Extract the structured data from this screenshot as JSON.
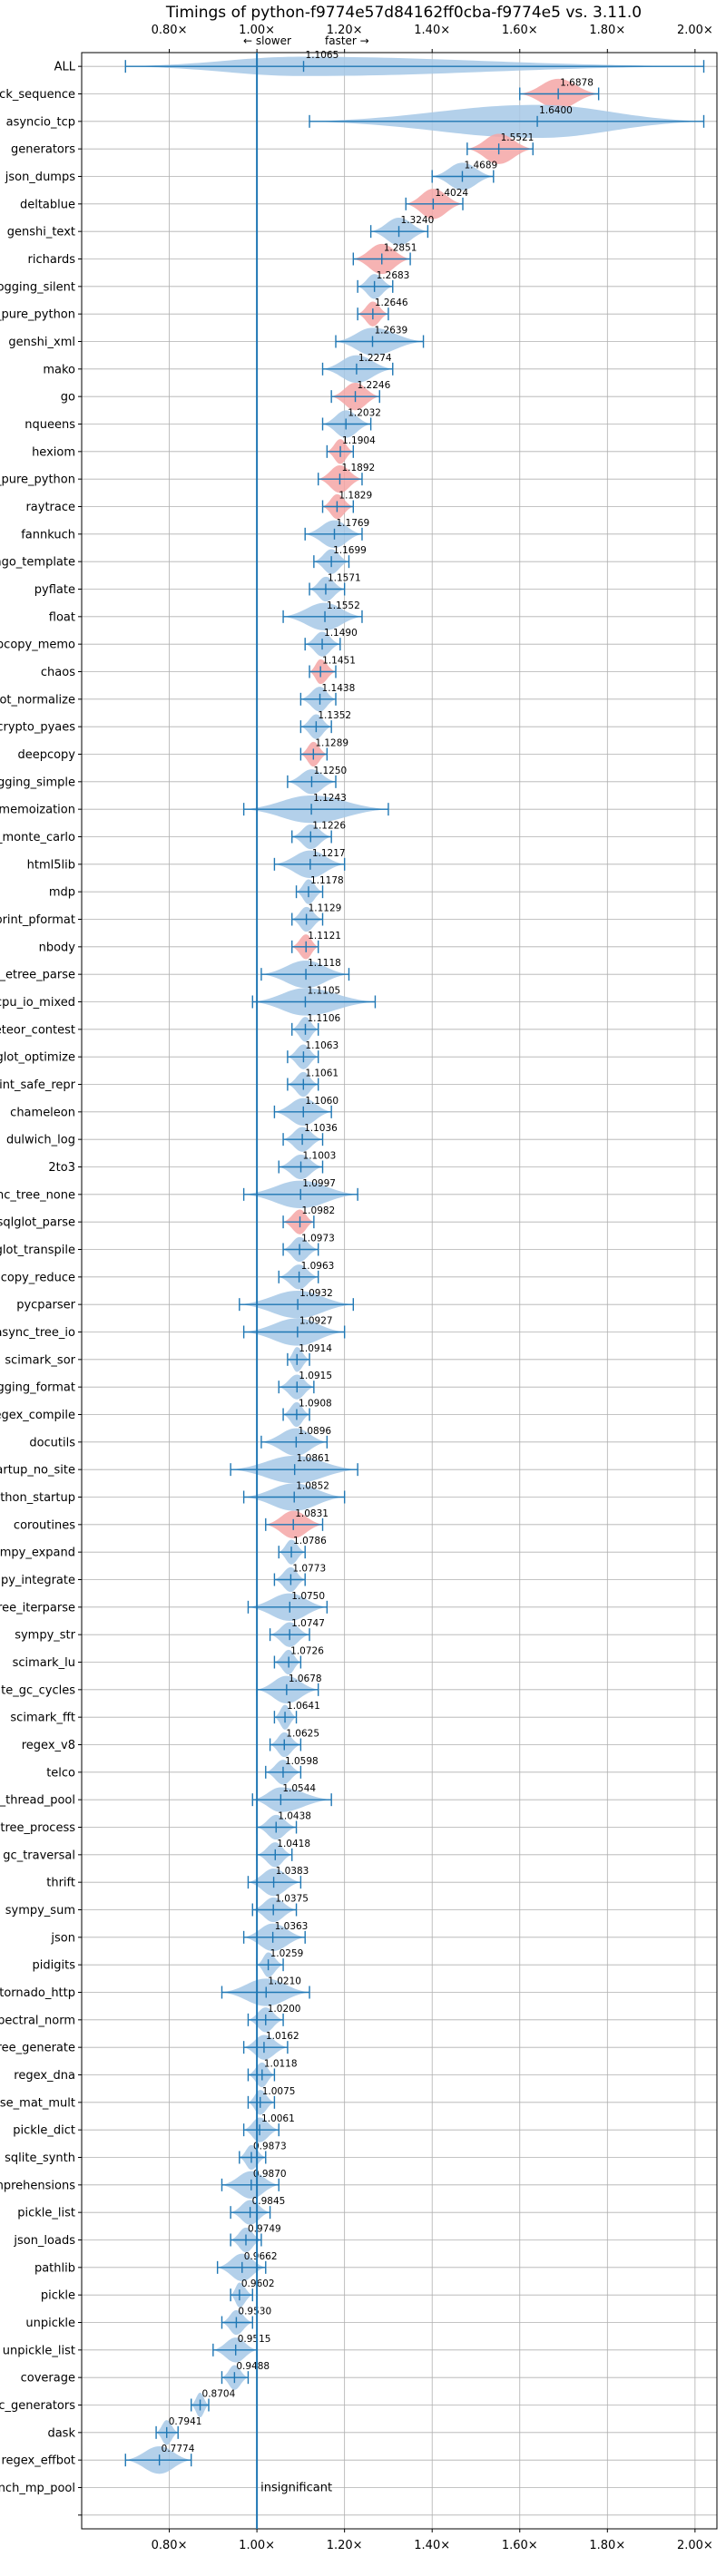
{
  "chart_data": {
    "type": "violin",
    "title": "Timings of python-f9774e57d84162ff0cba-f9774e5 vs. 3.11.0",
    "xlabel": "",
    "ylabel": "",
    "x_ticks": [
      "0.80×",
      "1.00×",
      "1.20×",
      "1.40×",
      "1.60×",
      "1.80×",
      "2.00×"
    ],
    "x_tick_values": [
      0.8,
      1.0,
      1.2,
      1.4,
      1.6,
      1.8,
      2.0
    ],
    "xlim": [
      0.6,
      2.05
    ],
    "reference_line": 1.0,
    "slower_label": "← slower",
    "faster_label": "faster →",
    "insignificant_label": "insignificant",
    "grid": true,
    "colors": {
      "normal": "#a6c8e6",
      "highlight": "#f4a6a6",
      "line": "#1f77b4",
      "grid": "#b0b0b0"
    },
    "benchmarks": [
      {
        "name": "ALL",
        "value": 1.1065,
        "value_label": "1.1065",
        "min": 0.7,
        "max": 2.02,
        "half_width": 0.35,
        "highlight": false
      },
      {
        "name": "unpack_sequence",
        "value": 1.6878,
        "value_label": "1.6878",
        "min": 1.6,
        "max": 1.78,
        "half_width": 0.55,
        "highlight": true
      },
      {
        "name": "asyncio_tcp",
        "value": 1.64,
        "value_label": "1.6400",
        "min": 1.12,
        "max": 2.02,
        "half_width": 0.6,
        "highlight": false
      },
      {
        "name": "generators",
        "value": 1.5521,
        "value_label": "1.5521",
        "min": 1.48,
        "max": 1.63,
        "half_width": 0.55,
        "highlight": true
      },
      {
        "name": "json_dumps",
        "value": 1.4689,
        "value_label": "1.4689",
        "min": 1.4,
        "max": 1.54,
        "half_width": 0.5,
        "highlight": false
      },
      {
        "name": "deltablue",
        "value": 1.4024,
        "value_label": "1.4024",
        "min": 1.34,
        "max": 1.47,
        "half_width": 0.55,
        "highlight": true
      },
      {
        "name": "genshi_text",
        "value": 1.324,
        "value_label": "1.3240",
        "min": 1.26,
        "max": 1.39,
        "half_width": 0.5,
        "highlight": false
      },
      {
        "name": "richards",
        "value": 1.2851,
        "value_label": "1.2851",
        "min": 1.22,
        "max": 1.35,
        "half_width": 0.55,
        "highlight": true
      },
      {
        "name": "logging_silent",
        "value": 1.2683,
        "value_label": "1.2683",
        "min": 1.23,
        "max": 1.31,
        "half_width": 0.45,
        "highlight": false
      },
      {
        "name": "unpickle_pure_python",
        "value": 1.2646,
        "value_label": "1.2646",
        "min": 1.23,
        "max": 1.3,
        "half_width": 0.45,
        "highlight": true
      },
      {
        "name": "genshi_xml",
        "value": 1.2639,
        "value_label": "1.2639",
        "min": 1.18,
        "max": 1.38,
        "half_width": 0.5,
        "highlight": false
      },
      {
        "name": "mako",
        "value": 1.2274,
        "value_label": "1.2274",
        "min": 1.15,
        "max": 1.31,
        "half_width": 0.5,
        "highlight": false
      },
      {
        "name": "go",
        "value": 1.2246,
        "value_label": "1.2246",
        "min": 1.17,
        "max": 1.28,
        "half_width": 0.5,
        "highlight": true
      },
      {
        "name": "nqueens",
        "value": 1.2032,
        "value_label": "1.2032",
        "min": 1.15,
        "max": 1.26,
        "half_width": 0.5,
        "highlight": false
      },
      {
        "name": "hexiom",
        "value": 1.1904,
        "value_label": "1.1904",
        "min": 1.16,
        "max": 1.22,
        "half_width": 0.45,
        "highlight": true
      },
      {
        "name": "pickle_pure_python",
        "value": 1.1892,
        "value_label": "1.1892",
        "min": 1.14,
        "max": 1.24,
        "half_width": 0.5,
        "highlight": true
      },
      {
        "name": "raytrace",
        "value": 1.1829,
        "value_label": "1.1829",
        "min": 1.15,
        "max": 1.22,
        "half_width": 0.45,
        "highlight": true
      },
      {
        "name": "fannkuch",
        "value": 1.1769,
        "value_label": "1.1769",
        "min": 1.11,
        "max": 1.24,
        "half_width": 0.5,
        "highlight": false
      },
      {
        "name": "django_template",
        "value": 1.1699,
        "value_label": "1.1699",
        "min": 1.13,
        "max": 1.21,
        "half_width": 0.45,
        "highlight": false
      },
      {
        "name": "pyflate",
        "value": 1.1571,
        "value_label": "1.1571",
        "min": 1.12,
        "max": 1.2,
        "half_width": 0.45,
        "highlight": false
      },
      {
        "name": "float",
        "value": 1.1552,
        "value_label": "1.1552",
        "min": 1.06,
        "max": 1.24,
        "half_width": 0.5,
        "highlight": false
      },
      {
        "name": "deepcopy_memo",
        "value": 1.149,
        "value_label": "1.1490",
        "min": 1.11,
        "max": 1.19,
        "half_width": 0.45,
        "highlight": false
      },
      {
        "name": "chaos",
        "value": 1.1451,
        "value_label": "1.1451",
        "min": 1.12,
        "max": 1.18,
        "half_width": 0.45,
        "highlight": true
      },
      {
        "name": "sqlglot_normalize",
        "value": 1.1438,
        "value_label": "1.1438",
        "min": 1.1,
        "max": 1.18,
        "half_width": 0.45,
        "highlight": false
      },
      {
        "name": "crypto_pyaes",
        "value": 1.1352,
        "value_label": "1.1352",
        "min": 1.1,
        "max": 1.17,
        "half_width": 0.45,
        "highlight": false
      },
      {
        "name": "deepcopy",
        "value": 1.1289,
        "value_label": "1.1289",
        "min": 1.1,
        "max": 1.16,
        "half_width": 0.45,
        "highlight": true
      },
      {
        "name": "logging_simple",
        "value": 1.125,
        "value_label": "1.1250",
        "min": 1.07,
        "max": 1.18,
        "half_width": 0.45,
        "highlight": false
      },
      {
        "name": "async_tree_memoization",
        "value": 1.1243,
        "value_label": "1.1243",
        "min": 0.97,
        "max": 1.3,
        "half_width": 0.5,
        "highlight": false
      },
      {
        "name": "scimark_monte_carlo",
        "value": 1.1226,
        "value_label": "1.1226",
        "min": 1.08,
        "max": 1.17,
        "half_width": 0.45,
        "highlight": false
      },
      {
        "name": "html5lib",
        "value": 1.1217,
        "value_label": "1.1217",
        "min": 1.04,
        "max": 1.2,
        "half_width": 0.5,
        "highlight": false
      },
      {
        "name": "mdp",
        "value": 1.1178,
        "value_label": "1.1178",
        "min": 1.09,
        "max": 1.15,
        "half_width": 0.45,
        "highlight": false
      },
      {
        "name": "pprint_pformat",
        "value": 1.1129,
        "value_label": "1.1129",
        "min": 1.08,
        "max": 1.15,
        "half_width": 0.45,
        "highlight": false
      },
      {
        "name": "nbody",
        "value": 1.1121,
        "value_label": "1.1121",
        "min": 1.08,
        "max": 1.14,
        "half_width": 0.45,
        "highlight": true
      },
      {
        "name": "xml_etree_parse",
        "value": 1.1118,
        "value_label": "1.1118",
        "min": 1.01,
        "max": 1.21,
        "half_width": 0.5,
        "highlight": false
      },
      {
        "name": "async_tree_cpu_io_mixed",
        "value": 1.1105,
        "value_label": "1.1105",
        "min": 0.99,
        "max": 1.27,
        "half_width": 0.5,
        "highlight": false
      },
      {
        "name": "meteor_contest",
        "value": 1.1106,
        "value_label": "1.1106",
        "min": 1.08,
        "max": 1.14,
        "half_width": 0.45,
        "highlight": false
      },
      {
        "name": "sqlglot_optimize",
        "value": 1.1063,
        "value_label": "1.1063",
        "min": 1.07,
        "max": 1.14,
        "half_width": 0.45,
        "highlight": false
      },
      {
        "name": "pprint_safe_repr",
        "value": 1.1061,
        "value_label": "1.1061",
        "min": 1.07,
        "max": 1.14,
        "half_width": 0.45,
        "highlight": false
      },
      {
        "name": "chameleon",
        "value": 1.106,
        "value_label": "1.1060",
        "min": 1.04,
        "max": 1.17,
        "half_width": 0.5,
        "highlight": false
      },
      {
        "name": "dulwich_log",
        "value": 1.1036,
        "value_label": "1.1036",
        "min": 1.06,
        "max": 1.15,
        "half_width": 0.45,
        "highlight": false
      },
      {
        "name": "2to3",
        "value": 1.1003,
        "value_label": "1.1003",
        "min": 1.05,
        "max": 1.15,
        "half_width": 0.45,
        "highlight": false
      },
      {
        "name": "async_tree_none",
        "value": 1.0997,
        "value_label": "1.0997",
        "min": 0.97,
        "max": 1.23,
        "half_width": 0.5,
        "highlight": false
      },
      {
        "name": "sqlglot_parse",
        "value": 1.0982,
        "value_label": "1.0982",
        "min": 1.06,
        "max": 1.13,
        "half_width": 0.45,
        "highlight": true
      },
      {
        "name": "sqlglot_transpile",
        "value": 1.0973,
        "value_label": "1.0973",
        "min": 1.06,
        "max": 1.14,
        "half_width": 0.45,
        "highlight": false
      },
      {
        "name": "deepcopy_reduce",
        "value": 1.0963,
        "value_label": "1.0963",
        "min": 1.05,
        "max": 1.14,
        "half_width": 0.45,
        "highlight": false
      },
      {
        "name": "pycparser",
        "value": 1.0932,
        "value_label": "1.0932",
        "min": 0.96,
        "max": 1.22,
        "half_width": 0.5,
        "highlight": false
      },
      {
        "name": "async_tree_io",
        "value": 1.0927,
        "value_label": "1.0927",
        "min": 0.97,
        "max": 1.2,
        "half_width": 0.5,
        "highlight": false
      },
      {
        "name": "scimark_sor",
        "value": 1.0914,
        "value_label": "1.0914",
        "min": 1.07,
        "max": 1.12,
        "half_width": 0.45,
        "highlight": false
      },
      {
        "name": "logging_format",
        "value": 1.0915,
        "value_label": "1.0915",
        "min": 1.05,
        "max": 1.13,
        "half_width": 0.45,
        "highlight": false
      },
      {
        "name": "regex_compile",
        "value": 1.0908,
        "value_label": "1.0908",
        "min": 1.06,
        "max": 1.12,
        "half_width": 0.45,
        "highlight": false
      },
      {
        "name": "docutils",
        "value": 1.0896,
        "value_label": "1.0896",
        "min": 1.01,
        "max": 1.16,
        "half_width": 0.5,
        "highlight": false
      },
      {
        "name": "python_startup_no_site",
        "value": 1.0861,
        "value_label": "1.0861",
        "min": 0.94,
        "max": 1.23,
        "half_width": 0.5,
        "highlight": false
      },
      {
        "name": "python_startup",
        "value": 1.0852,
        "value_label": "1.0852",
        "min": 0.97,
        "max": 1.2,
        "half_width": 0.5,
        "highlight": false
      },
      {
        "name": "coroutines",
        "value": 1.0831,
        "value_label": "1.0831",
        "min": 1.02,
        "max": 1.15,
        "half_width": 0.5,
        "highlight": true
      },
      {
        "name": "sympy_expand",
        "value": 1.0786,
        "value_label": "1.0786",
        "min": 1.05,
        "max": 1.11,
        "half_width": 0.45,
        "highlight": false
      },
      {
        "name": "sympy_integrate",
        "value": 1.0773,
        "value_label": "1.0773",
        "min": 1.04,
        "max": 1.11,
        "half_width": 0.45,
        "highlight": false
      },
      {
        "name": "xml_etree_iterparse",
        "value": 1.075,
        "value_label": "1.0750",
        "min": 0.98,
        "max": 1.16,
        "half_width": 0.5,
        "highlight": false
      },
      {
        "name": "sympy_str",
        "value": 1.0747,
        "value_label": "1.0747",
        "min": 1.03,
        "max": 1.12,
        "half_width": 0.45,
        "highlight": false
      },
      {
        "name": "scimark_lu",
        "value": 1.0726,
        "value_label": "1.0726",
        "min": 1.04,
        "max": 1.1,
        "half_width": 0.45,
        "highlight": false
      },
      {
        "name": "create_gc_cycles",
        "value": 1.0678,
        "value_label": "1.0678",
        "min": 1.0,
        "max": 1.14,
        "half_width": 0.5,
        "highlight": false
      },
      {
        "name": "scimark_fft",
        "value": 1.0641,
        "value_label": "1.0641",
        "min": 1.04,
        "max": 1.09,
        "half_width": 0.45,
        "highlight": false
      },
      {
        "name": "regex_v8",
        "value": 1.0625,
        "value_label": "1.0625",
        "min": 1.03,
        "max": 1.1,
        "half_width": 0.45,
        "highlight": false
      },
      {
        "name": "telco",
        "value": 1.0598,
        "value_label": "1.0598",
        "min": 1.02,
        "max": 1.1,
        "half_width": 0.45,
        "highlight": false
      },
      {
        "name": "bench_thread_pool",
        "value": 1.0544,
        "value_label": "1.0544",
        "min": 0.99,
        "max": 1.17,
        "half_width": 0.45,
        "highlight": false
      },
      {
        "name": "xml_etree_process",
        "value": 1.0438,
        "value_label": "1.0438",
        "min": 1.0,
        "max": 1.09,
        "half_width": 0.45,
        "highlight": false
      },
      {
        "name": "gc_traversal",
        "value": 1.0418,
        "value_label": "1.0418",
        "min": 1.0,
        "max": 1.08,
        "half_width": 0.45,
        "highlight": false
      },
      {
        "name": "thrift",
        "value": 1.0383,
        "value_label": "1.0383",
        "min": 0.98,
        "max": 1.1,
        "half_width": 0.5,
        "highlight": false
      },
      {
        "name": "sympy_sum",
        "value": 1.0375,
        "value_label": "1.0375",
        "min": 0.99,
        "max": 1.09,
        "half_width": 0.45,
        "highlight": false
      },
      {
        "name": "json",
        "value": 1.0363,
        "value_label": "1.0363",
        "min": 0.97,
        "max": 1.11,
        "half_width": 0.5,
        "highlight": false
      },
      {
        "name": "pidigits",
        "value": 1.0259,
        "value_label": "1.0259",
        "min": 1.0,
        "max": 1.06,
        "half_width": 0.45,
        "highlight": false
      },
      {
        "name": "tornado_http",
        "value": 1.021,
        "value_label": "1.0210",
        "min": 0.92,
        "max": 1.12,
        "half_width": 0.5,
        "highlight": false
      },
      {
        "name": "spectral_norm",
        "value": 1.02,
        "value_label": "1.0200",
        "min": 0.98,
        "max": 1.06,
        "half_width": 0.45,
        "highlight": false
      },
      {
        "name": "xml_etree_generate",
        "value": 1.0162,
        "value_label": "1.0162",
        "min": 0.97,
        "max": 1.07,
        "half_width": 0.45,
        "highlight": false
      },
      {
        "name": "regex_dna",
        "value": 1.0118,
        "value_label": "1.0118",
        "min": 0.98,
        "max": 1.04,
        "half_width": 0.45,
        "highlight": false
      },
      {
        "name": "scimark_sparse_mat_mult",
        "value": 1.0075,
        "value_label": "1.0075",
        "min": 0.98,
        "max": 1.04,
        "half_width": 0.45,
        "highlight": false
      },
      {
        "name": "pickle_dict",
        "value": 1.0061,
        "value_label": "1.0061",
        "min": 0.97,
        "max": 1.05,
        "half_width": 0.45,
        "highlight": false
      },
      {
        "name": "sqlite_synth",
        "value": 0.9873,
        "value_label": "0.9873",
        "min": 0.96,
        "max": 1.02,
        "half_width": 0.45,
        "highlight": false
      },
      {
        "name": "comprehensions",
        "value": 0.987,
        "value_label": "0.9870",
        "min": 0.92,
        "max": 1.05,
        "half_width": 0.5,
        "highlight": false
      },
      {
        "name": "pickle_list",
        "value": 0.9845,
        "value_label": "0.9845",
        "min": 0.94,
        "max": 1.03,
        "half_width": 0.45,
        "highlight": false
      },
      {
        "name": "json_loads",
        "value": 0.9749,
        "value_label": "0.9749",
        "min": 0.94,
        "max": 1.01,
        "half_width": 0.45,
        "highlight": false
      },
      {
        "name": "pathlib",
        "value": 0.9662,
        "value_label": "0.9662",
        "min": 0.91,
        "max": 1.02,
        "half_width": 0.5,
        "highlight": false
      },
      {
        "name": "pickle",
        "value": 0.9602,
        "value_label": "0.9602",
        "min": 0.94,
        "max": 0.99,
        "half_width": 0.45,
        "highlight": false
      },
      {
        "name": "unpickle",
        "value": 0.953,
        "value_label": "0.9530",
        "min": 0.92,
        "max": 0.99,
        "half_width": 0.45,
        "highlight": false
      },
      {
        "name": "unpickle_list",
        "value": 0.9515,
        "value_label": "0.9515",
        "min": 0.9,
        "max": 1.0,
        "half_width": 0.45,
        "highlight": false
      },
      {
        "name": "coverage",
        "value": 0.9488,
        "value_label": "0.9488",
        "min": 0.92,
        "max": 0.98,
        "half_width": 0.45,
        "highlight": false
      },
      {
        "name": "async_generators",
        "value": 0.8704,
        "value_label": "0.8704",
        "min": 0.85,
        "max": 0.89,
        "half_width": 0.45,
        "highlight": false
      },
      {
        "name": "dask",
        "value": 0.7941,
        "value_label": "0.7941",
        "min": 0.77,
        "max": 0.82,
        "half_width": 0.45,
        "highlight": false
      },
      {
        "name": "regex_effbot",
        "value": 0.7774,
        "value_label": "0.7774",
        "min": 0.7,
        "max": 0.85,
        "half_width": 0.5,
        "highlight": false
      },
      {
        "name": "bench_mp_pool",
        "value": null,
        "value_label": "",
        "insignificant": true
      },
      {
        "name": "",
        "value": null,
        "value_label": "",
        "insignificant": true
      }
    ]
  }
}
